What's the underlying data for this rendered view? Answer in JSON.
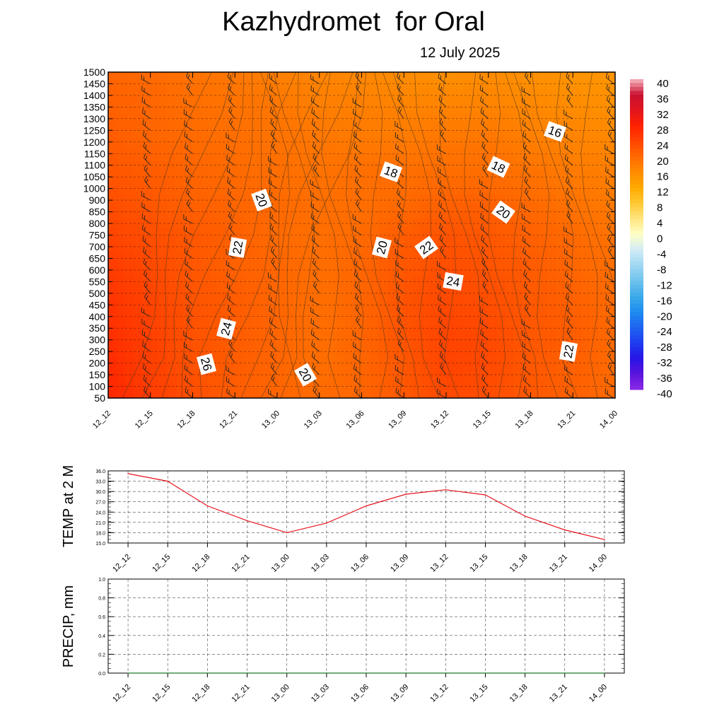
{
  "header": {
    "title": "Kazhydromet  for Oral",
    "subtitle": "12 July 2025"
  },
  "chart_data": [
    {
      "type": "heatmap",
      "title": "Kazhydromet  for Oral",
      "subtitle": "12 July 2025",
      "xlabel": "",
      "ylabel": "",
      "x_ticks": [
        "12_12",
        "12_15",
        "12_18",
        "12_21",
        "13_00",
        "13_03",
        "13_06",
        "13_09",
        "13_12",
        "13_15",
        "13_18",
        "13_21",
        "14_00"
      ],
      "y_ticks": [
        50,
        100,
        150,
        200,
        250,
        300,
        350,
        400,
        450,
        500,
        550,
        600,
        650,
        700,
        750,
        800,
        850,
        900,
        1000,
        1050,
        1100,
        1150,
        1200,
        1250,
        1300,
        1350,
        1400,
        1450,
        1500
      ],
      "colorbar": {
        "labels": [
          40,
          36,
          32,
          28,
          24,
          20,
          16,
          12,
          8,
          4,
          0,
          -4,
          -8,
          -12,
          -16,
          -20,
          -24,
          -28,
          -32,
          -36,
          -40
        ],
        "colors": [
          "#f7b7c3",
          "#c8102e",
          "#e2141e",
          "#ff2200",
          "#ff4400",
          "#ff6a00",
          "#ff8c00",
          "#ffaa00",
          "#ffc832",
          "#ffe680",
          "#ffffc8",
          "#d2ecf8",
          "#a0d7f2",
          "#6ec2ee",
          "#3caae8",
          "#1e8cf0",
          "#1e64f0",
          "#1e3cf0",
          "#2814e6",
          "#5a14dc",
          "#8c28e6"
        ]
      },
      "grid": true,
      "temperature_grid": [
        [
          27.5,
          25.0,
          23.0,
          21.5,
          20.5,
          20.0,
          20.5,
          22.0,
          23.5,
          23.0,
          22.0,
          21.0,
          20.0
        ],
        [
          27.0,
          24.5,
          22.5,
          21.5,
          20.5,
          19.5,
          20.5,
          22.0,
          24.0,
          23.5,
          22.0,
          21.0,
          20.0
        ],
        [
          26.5,
          24.5,
          22.5,
          21.5,
          20.5,
          19.5,
          20.5,
          22.5,
          24.0,
          23.5,
          22.0,
          21.5,
          20.0
        ],
        [
          26.0,
          24.0,
          22.5,
          21.5,
          20.5,
          19.5,
          20.5,
          22.5,
          23.5,
          23.0,
          22.0,
          21.0,
          20.0
        ],
        [
          25.0,
          23.5,
          22.0,
          21.0,
          20.5,
          19.5,
          20.5,
          22.0,
          23.0,
          22.5,
          21.5,
          20.5,
          19.5
        ],
        [
          24.0,
          23.0,
          22.0,
          21.0,
          20.0,
          19.5,
          20.0,
          21.5,
          22.5,
          22.0,
          21.0,
          20.0,
          19.0
        ],
        [
          23.0,
          22.0,
          21.0,
          20.5,
          20.0,
          19.5,
          19.5,
          20.0,
          21.0,
          21.0,
          20.0,
          19.0,
          18.0
        ],
        [
          22.0,
          21.5,
          20.5,
          20.0,
          19.5,
          19.0,
          19.5,
          19.5,
          19.5,
          19.5,
          19.0,
          18.0,
          17.5
        ],
        [
          21.5,
          20.5,
          20.0,
          19.5,
          19.0,
          18.5,
          18.0,
          18.0,
          18.5,
          18.5,
          17.5,
          17.0,
          16.5
        ],
        [
          21.0,
          20.5,
          19.5,
          19.0,
          18.5,
          17.5,
          17.5,
          17.0,
          17.0,
          17.0,
          16.5,
          16.0,
          15.5
        ],
        [
          20.5,
          20.0,
          19.0,
          18.5,
          17.5,
          17.0,
          16.5,
          16.0,
          15.5,
          16.0,
          15.5,
          15.0,
          15.0
        ]
      ],
      "contour_labels": [
        "26",
        "24",
        "22",
        "20",
        "20",
        "20",
        "18",
        "18",
        "16",
        "20",
        "22",
        "24",
        "22"
      ]
    },
    {
      "type": "line",
      "ylabel": "TEMP at 2 M",
      "xlabel": "",
      "categories": [
        "12_12",
        "12_15",
        "12_18",
        "12_21",
        "13_00",
        "13_03",
        "13_06",
        "13_09",
        "13_12",
        "13_15",
        "13_18",
        "13_21",
        "14_00"
      ],
      "values": [
        35.2,
        33.0,
        25.8,
        21.5,
        18.0,
        20.8,
        25.8,
        29.2,
        30.5,
        29.0,
        22.8,
        18.8,
        16.0
      ],
      "y_ticks": [
        "15.0",
        "18.0",
        "21.0",
        "24.0",
        "27.0",
        "30.0",
        "33.0",
        "36.0"
      ],
      "ylim": [
        15,
        36
      ],
      "line_color": "#e8141e",
      "grid": true
    },
    {
      "type": "line",
      "ylabel": "PRECIP, mm",
      "xlabel": "",
      "categories": [
        "12_12",
        "12_15",
        "12_18",
        "12_21",
        "13_00",
        "13_03",
        "13_06",
        "13_09",
        "13_12",
        "13_15",
        "13_18",
        "13_21",
        "14_00"
      ],
      "values": [
        0,
        0,
        0,
        0,
        0,
        0,
        0,
        0,
        0,
        0,
        0,
        0,
        0
      ],
      "y_ticks": [
        "0.0",
        "0.2",
        "0.4",
        "0.6",
        "0.8",
        "1.0"
      ],
      "ylim": [
        0,
        1
      ],
      "line_color": "#1e7828",
      "grid": true
    }
  ]
}
